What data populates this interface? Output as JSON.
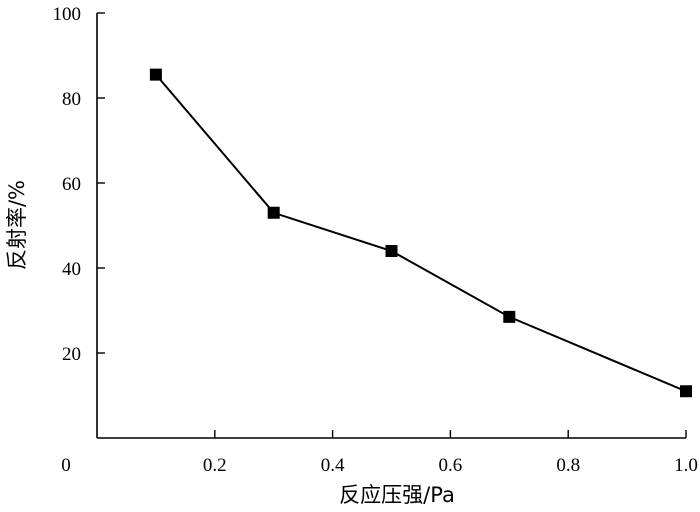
{
  "chart_data": {
    "type": "line",
    "title": "",
    "xlabel": "反应压强/Pa",
    "ylabel": "反射率/%",
    "xlim": [
      0,
      1.0
    ],
    "ylim": [
      0,
      100
    ],
    "x_ticks": [
      "0",
      "0.2",
      "0.4",
      "0.6",
      "0.8",
      "1.0"
    ],
    "y_ticks": [
      "20",
      "40",
      "60",
      "80",
      "100"
    ],
    "grid": false,
    "legend": "none",
    "series": [
      {
        "x": [
          0.1,
          0.3,
          0.5,
          0.7,
          1.0
        ],
        "values": [
          85.5,
          53,
          44,
          28.5,
          11
        ],
        "marker": "square",
        "color": "#000000"
      }
    ]
  }
}
